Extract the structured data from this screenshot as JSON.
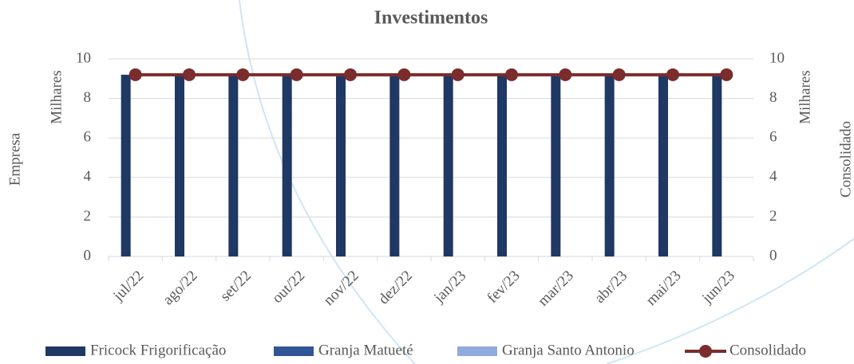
{
  "chart_data": {
    "type": "combo",
    "title": "Investimentos",
    "categories": [
      "jul/22",
      "ago/22",
      "set/22",
      "out/22",
      "nov/22",
      "dez/22",
      "jan/23",
      "fev/23",
      "mar/23",
      "abr/23",
      "mai/23",
      "jun/23"
    ],
    "series": [
      {
        "name": "Fricock Frigorificação",
        "type": "bar",
        "color": "#1f3864",
        "values": [
          9.2,
          9.2,
          9.2,
          9.2,
          9.2,
          9.2,
          9.2,
          9.2,
          9.2,
          9.2,
          9.2,
          9.2
        ]
      },
      {
        "name": "Granja Matueté",
        "type": "bar",
        "color": "#2f5597",
        "values": [
          0,
          0,
          0,
          0,
          0,
          0,
          0,
          0,
          0,
          0,
          0,
          0
        ]
      },
      {
        "name": "Granja Santo Antonio",
        "type": "bar",
        "color": "#8faadc",
        "values": [
          0,
          0,
          0,
          0,
          0,
          0,
          0,
          0,
          0,
          0,
          0,
          0
        ]
      },
      {
        "name": "Consolidado",
        "type": "line",
        "axis": "y2",
        "color": "#7b2c2c",
        "values": [
          9.2,
          9.2,
          9.2,
          9.2,
          9.2,
          9.2,
          9.2,
          9.2,
          9.2,
          9.2,
          9.2,
          9.2
        ]
      }
    ],
    "ylabel": "Empresa",
    "y2label": "Consolidado",
    "y_display_unit": "Milhares",
    "y2_display_unit": "Milhares",
    "ylim": [
      0,
      10
    ],
    "yticks": [
      0,
      2,
      4,
      6,
      8,
      10
    ],
    "y2lim": [
      0,
      10
    ],
    "y2ticks": [
      0,
      2,
      4,
      6,
      8,
      10
    ],
    "grid": true,
    "legend": "bottom"
  }
}
